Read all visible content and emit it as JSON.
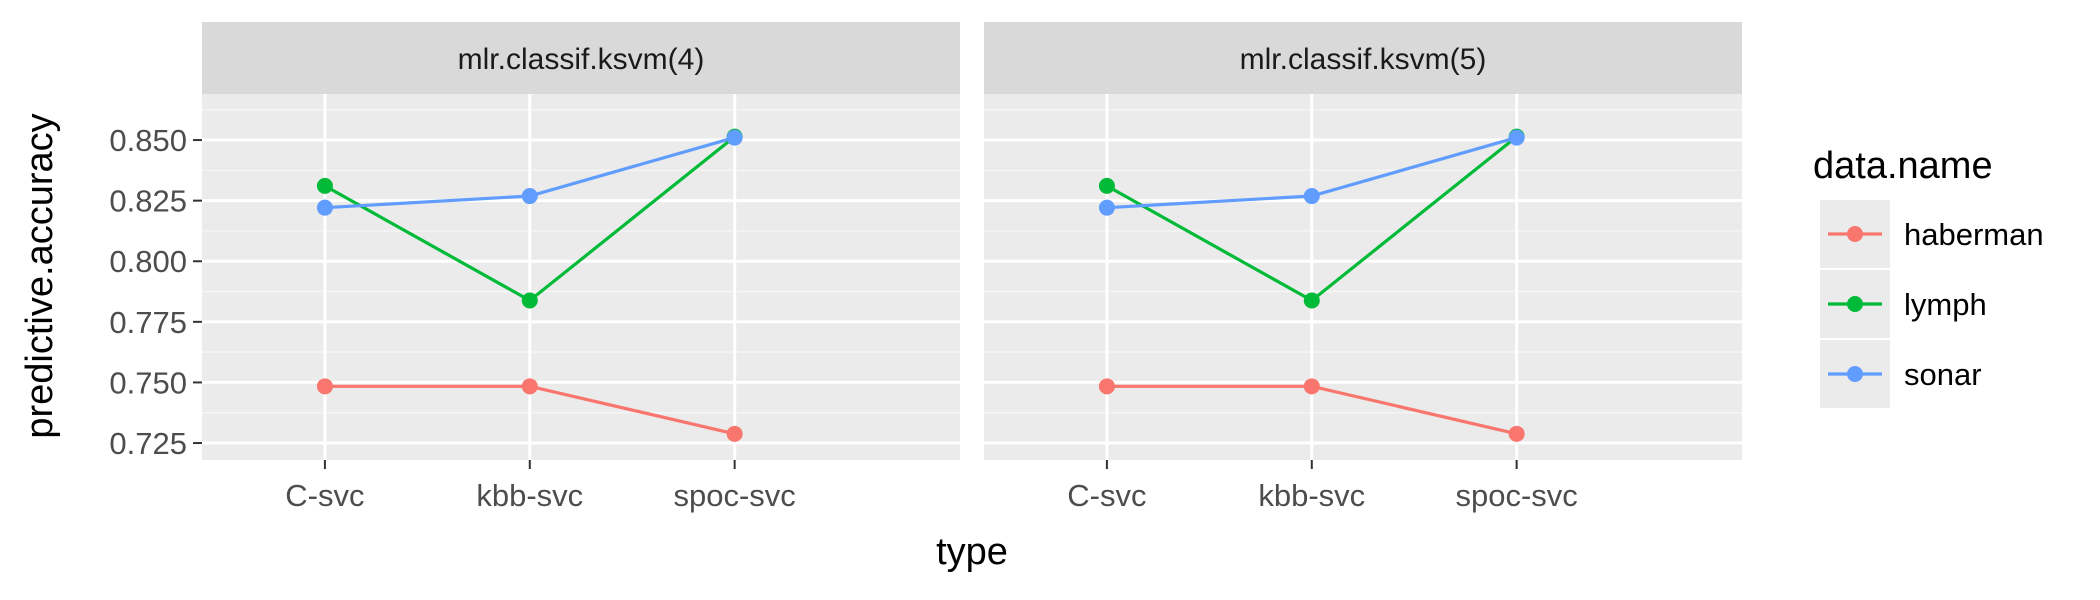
{
  "chart_data": {
    "type": "line",
    "xlabel": "type",
    "ylabel": "predictive.accuracy",
    "categories": [
      "C-svc",
      "kbb-svc",
      "spoc-svc"
    ],
    "ylim": [
      0.718,
      0.869
    ],
    "yticks": [
      0.725,
      0.75,
      0.775,
      0.8,
      0.825,
      0.85
    ],
    "ytick_labels": [
      "0.725",
      "0.750",
      "0.775",
      "0.800",
      "0.825",
      "0.850"
    ],
    "grid": true,
    "legend": {
      "title": "data.name",
      "placement": "right",
      "entries": [
        "haberman",
        "lymph",
        "sonar"
      ]
    },
    "colors": {
      "haberman": "#F8766D",
      "lymph": "#00BA38",
      "sonar": "#619CFF"
    },
    "panels": [
      {
        "title": "mlr.classif.ksvm(4)",
        "series": [
          {
            "name": "haberman",
            "values": [
              0.7484,
              0.7484,
              0.7288
            ]
          },
          {
            "name": "lymph",
            "values": [
              0.8311,
              0.7838,
              0.8514
            ]
          },
          {
            "name": "sonar",
            "values": [
              0.8221,
              0.8269,
              0.851
            ]
          }
        ]
      },
      {
        "title": "mlr.classif.ksvm(5)",
        "series": [
          {
            "name": "haberman",
            "values": [
              0.7484,
              0.7484,
              0.7288
            ]
          },
          {
            "name": "lymph",
            "values": [
              0.8311,
              0.7838,
              0.8514
            ]
          },
          {
            "name": "sonar",
            "values": [
              0.8221,
              0.8269,
              0.851
            ]
          }
        ]
      }
    ]
  }
}
